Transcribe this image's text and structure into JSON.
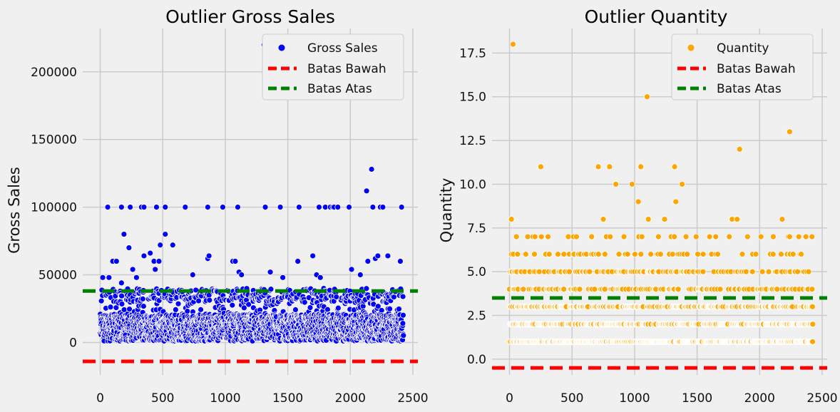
{
  "chart_data": [
    {
      "type": "scatter",
      "title": "Outlier Gross Sales",
      "xlabel": "",
      "ylabel": "Gross Sales",
      "xlim": [
        -140,
        2540
      ],
      "ylim": [
        -24000,
        232000
      ],
      "xticks": [
        0,
        500,
        1000,
        1500,
        2000,
        2500
      ],
      "yticks": [
        0,
        50000,
        100000,
        150000,
        200000
      ],
      "xtick_labels": [
        "0",
        "500",
        "1000",
        "1500",
        "2000",
        "2500"
      ],
      "ytick_labels": [
        "0",
        "50000",
        "100000",
        "150000",
        "200000"
      ],
      "grid": true,
      "legend_position": "top-right",
      "point_color": "#0000ff",
      "n_points": 2420,
      "series": [
        {
          "name": "Gross Sales",
          "kind": "scatter",
          "color": "#0000ff",
          "outliers": [
            {
              "x": 20,
              "y": 48000
            },
            {
              "x": 60,
              "y": 100000
            },
            {
              "x": 70,
              "y": 48000
            },
            {
              "x": 100,
              "y": 60000
            },
            {
              "x": 130,
              "y": 60000
            },
            {
              "x": 170,
              "y": 100000
            },
            {
              "x": 170,
              "y": 44000
            },
            {
              "x": 190,
              "y": 80000
            },
            {
              "x": 230,
              "y": 70000
            },
            {
              "x": 240,
              "y": 100000
            },
            {
              "x": 260,
              "y": 54000
            },
            {
              "x": 290,
              "y": 48000
            },
            {
              "x": 330,
              "y": 100000
            },
            {
              "x": 350,
              "y": 100000
            },
            {
              "x": 350,
              "y": 64000
            },
            {
              "x": 400,
              "y": 66000
            },
            {
              "x": 430,
              "y": 60000
            },
            {
              "x": 440,
              "y": 54000
            },
            {
              "x": 450,
              "y": 100000
            },
            {
              "x": 470,
              "y": 60000
            },
            {
              "x": 480,
              "y": 72000
            },
            {
              "x": 520,
              "y": 80000
            },
            {
              "x": 520,
              "y": 100000
            },
            {
              "x": 580,
              "y": 72000
            },
            {
              "x": 680,
              "y": 100000
            },
            {
              "x": 740,
              "y": 50000
            },
            {
              "x": 860,
              "y": 100000
            },
            {
              "x": 860,
              "y": 62000
            },
            {
              "x": 870,
              "y": 64000
            },
            {
              "x": 980,
              "y": 100000
            },
            {
              "x": 1060,
              "y": 60000
            },
            {
              "x": 1080,
              "y": 60000
            },
            {
              "x": 1100,
              "y": 100000
            },
            {
              "x": 1110,
              "y": 52000
            },
            {
              "x": 1130,
              "y": 50000
            },
            {
              "x": 1310,
              "y": 220000
            },
            {
              "x": 1320,
              "y": 100000
            },
            {
              "x": 1360,
              "y": 52000
            },
            {
              "x": 1440,
              "y": 100000
            },
            {
              "x": 1460,
              "y": 48000
            },
            {
              "x": 1580,
              "y": 60000
            },
            {
              "x": 1590,
              "y": 100000
            },
            {
              "x": 1700,
              "y": 64000
            },
            {
              "x": 1730,
              "y": 50000
            },
            {
              "x": 1750,
              "y": 100000
            },
            {
              "x": 1760,
              "y": 48000
            },
            {
              "x": 1800,
              "y": 100000
            },
            {
              "x": 1840,
              "y": 100000
            },
            {
              "x": 1860,
              "y": 100000
            },
            {
              "x": 1870,
              "y": 100000
            },
            {
              "x": 1900,
              "y": 100000
            },
            {
              "x": 1990,
              "y": 100000
            },
            {
              "x": 2010,
              "y": 54000
            },
            {
              "x": 2080,
              "y": 50000
            },
            {
              "x": 2130,
              "y": 112000
            },
            {
              "x": 2140,
              "y": 60000
            },
            {
              "x": 2170,
              "y": 128000
            },
            {
              "x": 2180,
              "y": 100000
            },
            {
              "x": 2200,
              "y": 62000
            },
            {
              "x": 2220,
              "y": 64000
            },
            {
              "x": 2240,
              "y": 100000
            },
            {
              "x": 2260,
              "y": 100000
            },
            {
              "x": 2300,
              "y": 64000
            },
            {
              "x": 2400,
              "y": 60000
            },
            {
              "x": 2410,
              "y": 100000
            }
          ]
        },
        {
          "name": "Batas Bawah",
          "kind": "hline",
          "y": -14000,
          "color": "#ff0000"
        },
        {
          "name": "Batas Atas",
          "kind": "hline",
          "y": 38000,
          "color": "#008000"
        }
      ]
    },
    {
      "type": "scatter",
      "title": "Outlier Quantity",
      "xlabel": "",
      "ylabel": "Quantity",
      "xlim": [
        -140,
        2540
      ],
      "ylim": [
        -0.9,
        18.9
      ],
      "xticks": [
        0,
        500,
        1000,
        1500,
        2000,
        2500
      ],
      "yticks": [
        0.0,
        2.5,
        5.0,
        7.5,
        10.0,
        12.5,
        15.0,
        17.5
      ],
      "xtick_labels": [
        "0",
        "500",
        "1000",
        "1500",
        "2000",
        "2500"
      ],
      "ytick_labels": [
        "0.0",
        "2.5",
        "5.0",
        "7.5",
        "10.0",
        "12.5",
        "15.0",
        "17.5"
      ],
      "grid": true,
      "legend_position": "top-right",
      "point_color": "#ffa500",
      "n_points": 2420,
      "series": [
        {
          "name": "Quantity",
          "kind": "scatter",
          "color": "#ffa500",
          "outliers": [
            {
              "x": 15,
              "y": 8
            },
            {
              "x": 28,
              "y": 18
            },
            {
              "x": 250,
              "y": 11
            },
            {
              "x": 710,
              "y": 11
            },
            {
              "x": 750,
              "y": 8
            },
            {
              "x": 800,
              "y": 11
            },
            {
              "x": 850,
              "y": 10
            },
            {
              "x": 980,
              "y": 10
            },
            {
              "x": 1030,
              "y": 9
            },
            {
              "x": 1050,
              "y": 11
            },
            {
              "x": 1100,
              "y": 15
            },
            {
              "x": 1110,
              "y": 8
            },
            {
              "x": 1240,
              "y": 8
            },
            {
              "x": 1320,
              "y": 11
            },
            {
              "x": 1330,
              "y": 9
            },
            {
              "x": 1360,
              "y": 15
            },
            {
              "x": 1380,
              "y": 10
            },
            {
              "x": 1780,
              "y": 8
            },
            {
              "x": 1820,
              "y": 8
            },
            {
              "x": 1840,
              "y": 12
            },
            {
              "x": 2180,
              "y": 8
            },
            {
              "x": 2240,
              "y": 13
            },
            {
              "x": 2240,
              "y": 7
            },
            {
              "x": 2370,
              "y": 7
            }
          ]
        },
        {
          "name": "Batas Bawah",
          "kind": "hline",
          "y": -0.5,
          "color": "#ff0000"
        },
        {
          "name": "Batas Atas",
          "kind": "hline",
          "y": 3.5,
          "color": "#008000"
        }
      ]
    }
  ]
}
